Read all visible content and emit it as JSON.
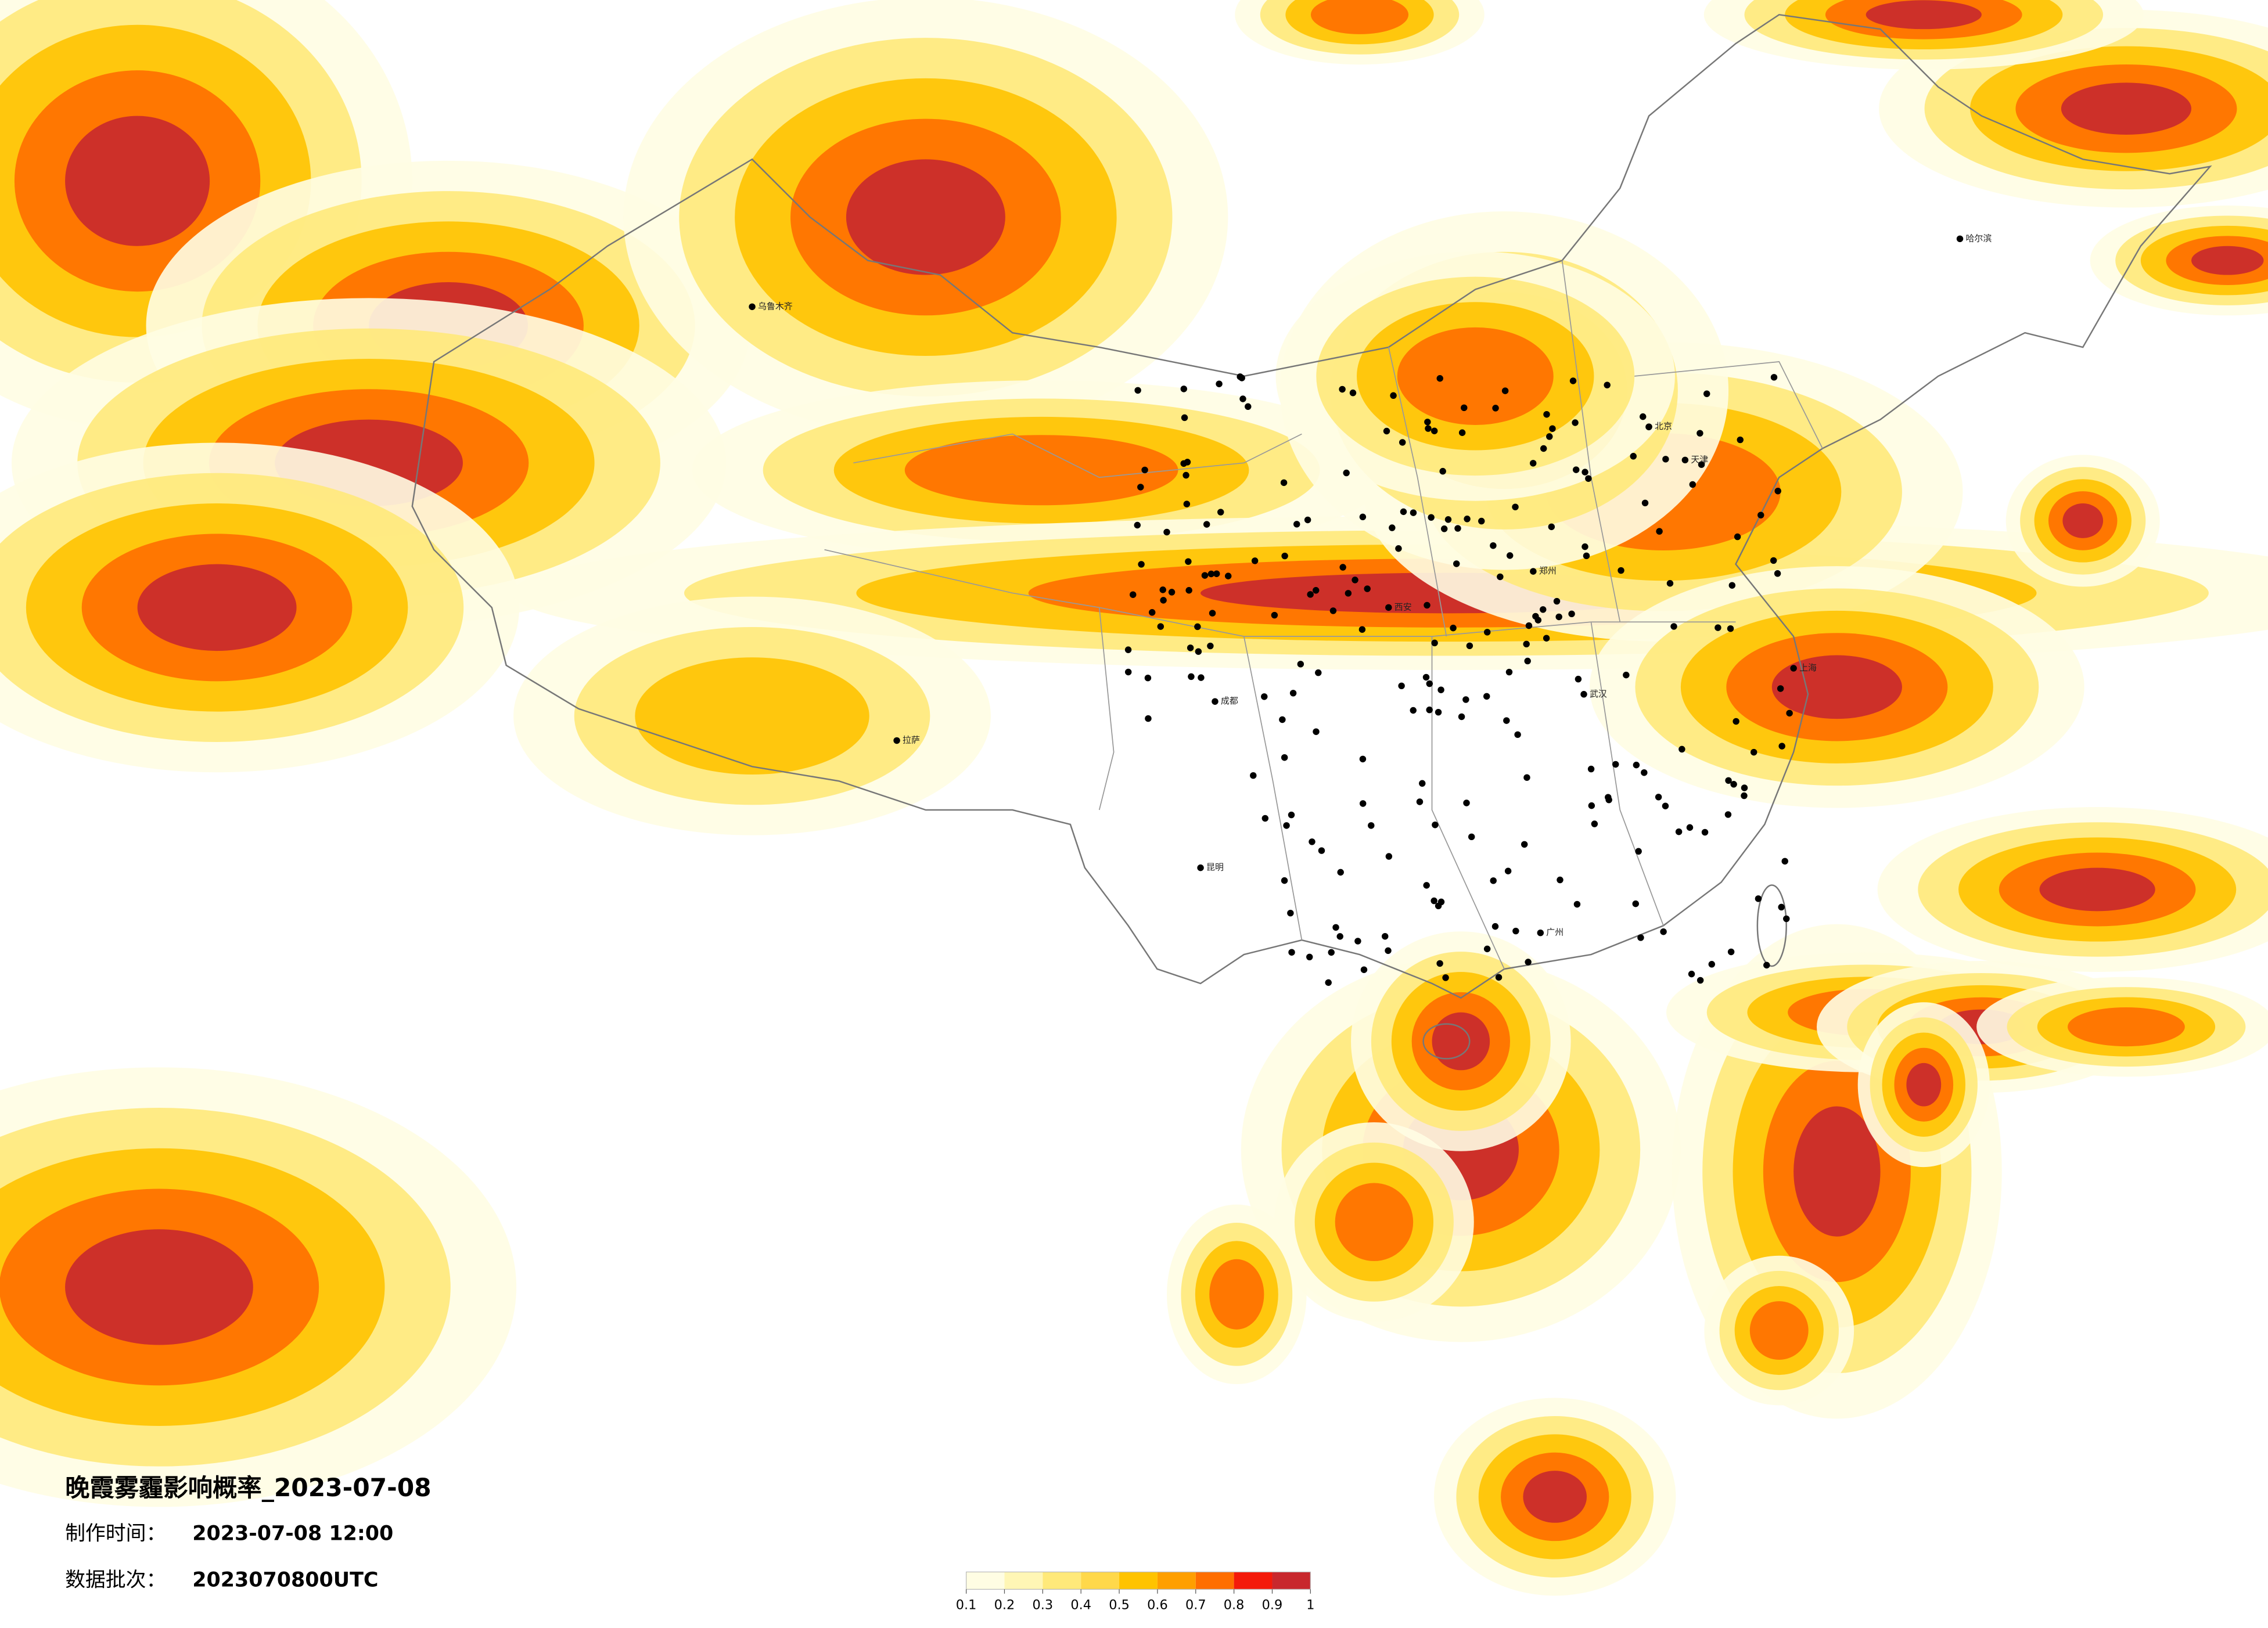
{
  "title": "晚霞雾霾影响概率_2023-07-08",
  "info": [
    {
      "label": "制作时间：",
      "value": "2023-07-08 12:00"
    },
    {
      "label": "数据批次：",
      "value": "2023070800UTC"
    }
  ],
  "colorbar": {
    "ticks": [
      0.1,
      0.2,
      0.3,
      0.4,
      0.5,
      0.6,
      0.7,
      0.8,
      0.9,
      1
    ],
    "colors": [
      "#fffde3",
      "#fff6b5",
      "#ffe97a",
      "#ffd84a",
      "#ffc300",
      "#ff9f00",
      "#ff6e00",
      "#f41a0a",
      "#c8282d"
    ]
  },
  "cities": [
    "北京",
    "天津",
    "上海",
    "广州",
    "武汉",
    "成都",
    "西安",
    "乌鲁木齐",
    "拉萨",
    "哈尔滨",
    "昆明",
    "郑州"
  ]
}
